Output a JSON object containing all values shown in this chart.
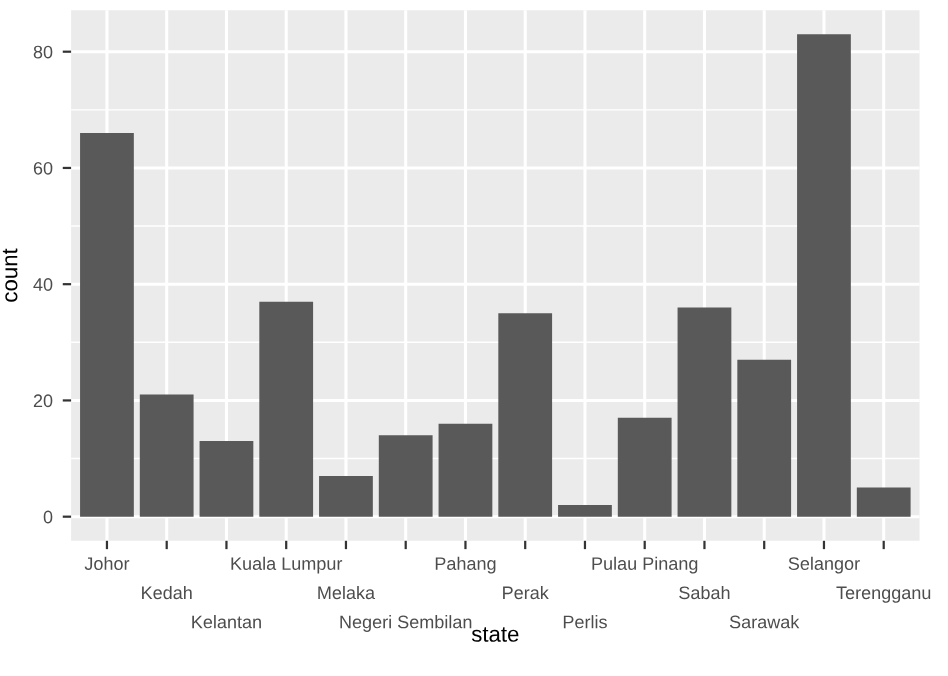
{
  "chart_data": {
    "type": "bar",
    "xlabel": "state",
    "ylabel": "count",
    "categories": [
      "Johor",
      "Kedah",
      "Kelantan",
      "Kuala Lumpur",
      "Melaka",
      "Negeri Sembilan",
      "Pahang",
      "Perak",
      "Perlis",
      "Pulau Pinang",
      "Sabah",
      "Sarawak",
      "Selangor",
      "Terengganu"
    ],
    "values": [
      66,
      21,
      13,
      37,
      7,
      14,
      16,
      35,
      2,
      17,
      36,
      27,
      83,
      5
    ],
    "color": "#595959",
    "ylim": [
      -4.15,
      87.15
    ],
    "yticks": [
      0,
      20,
      40,
      60,
      80
    ],
    "grid": true
  }
}
